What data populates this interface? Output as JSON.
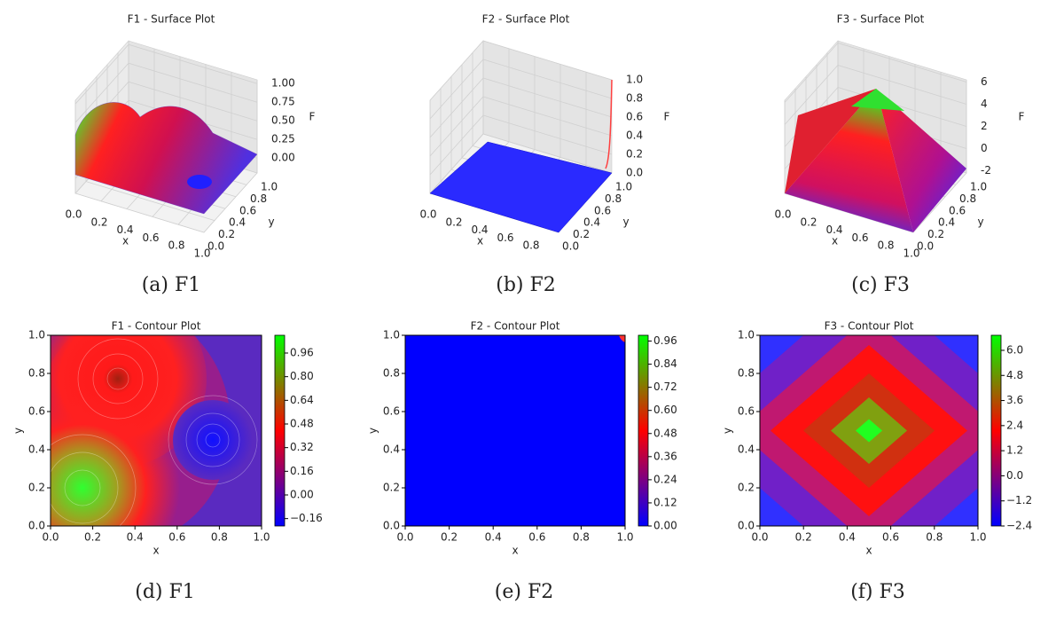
{
  "chart_data": [
    {
      "type": "surface",
      "title": "F1 - Surface Plot",
      "caption": "(a) F1",
      "xlabel": "x",
      "ylabel": "y",
      "zlabel": "F",
      "xlim": [
        0,
        1
      ],
      "ylim": [
        0,
        1
      ],
      "zlim": [
        -0.2,
        1.05
      ],
      "xticks": [
        {
          "value": 0,
          "label": "0.0"
        },
        0.2,
        0.4,
        0.6,
        0.8,
        {
          "value": 1,
          "label": "1.0"
        }
      ],
      "yticks": [
        {
          "value": 0,
          "label": "0.0"
        },
        0.2,
        0.4,
        0.6,
        0.8,
        {
          "value": 1,
          "label": "1.0"
        }
      ],
      "zticks": [
        {
          "value": 0,
          "label": "0.00"
        },
        0.25,
        {
          "value": 0.5,
          "label": "0.50"
        },
        0.75,
        {
          "value": 1,
          "label": "1.00"
        }
      ]
    },
    {
      "type": "surface",
      "title": "F2 - Surface Plot",
      "caption": "(b) F2",
      "xlabel": "x",
      "ylabel": "y",
      "zlabel": "F",
      "xlim": [
        0,
        1
      ],
      "ylim": [
        0,
        1
      ],
      "zlim": [
        0,
        1
      ],
      "xticks": [
        {
          "value": 0,
          "label": "0.0"
        },
        0.2,
        0.4,
        0.6,
        0.8
      ],
      "yticks": [
        {
          "value": 0,
          "label": "0.0"
        },
        0.2,
        0.4,
        0.6,
        0.8,
        {
          "value": 1,
          "label": "1.0"
        }
      ],
      "zticks": [
        {
          "value": 0,
          "label": "0.0"
        },
        0.2,
        0.4,
        0.6,
        0.8,
        {
          "value": 1,
          "label": "1.0"
        }
      ]
    },
    {
      "type": "surface",
      "title": "F3 - Surface Plot",
      "caption": "(c) F3",
      "xlabel": "x",
      "ylabel": "y",
      "zlabel": "F",
      "xlim": [
        0,
        1
      ],
      "ylim": [
        0,
        1
      ],
      "zlim": [
        -2.2,
        6.2
      ],
      "xticks": [
        {
          "value": 0,
          "label": "0.0"
        },
        0.2,
        0.4,
        0.6,
        0.8,
        {
          "value": 1,
          "label": "1.0"
        }
      ],
      "yticks": [
        {
          "value": 0,
          "label": "0.0"
        },
        0.2,
        0.4,
        0.6,
        0.8,
        {
          "value": 1,
          "label": "1.0"
        }
      ],
      "zticks": [
        -2,
        0,
        2,
        4,
        6
      ]
    },
    {
      "type": "contour",
      "title": "F1 - Contour Plot",
      "caption": "(d) F1",
      "xlabel": "x",
      "ylabel": "y",
      "xlim": [
        0,
        1
      ],
      "ylim": [
        0,
        1
      ],
      "clim": [
        -0.21,
        1.08
      ],
      "xticks": [
        {
          "value": 0,
          "label": "0.0"
        },
        0.2,
        0.4,
        0.6,
        0.8,
        {
          "value": 1,
          "label": "1.0"
        }
      ],
      "yticks": [
        {
          "value": 0,
          "label": "0.0"
        },
        0.2,
        0.4,
        0.6,
        0.8,
        {
          "value": 1,
          "label": "1.0"
        }
      ],
      "cticks": [
        {
          "value": -0.16,
          "label": "−0.16"
        },
        {
          "value": 0,
          "label": "0.00"
        },
        0.16,
        0.32,
        0.48,
        0.64,
        {
          "value": 0.8,
          "label": "0.80"
        },
        0.96
      ]
    },
    {
      "type": "contour",
      "title": "F2 - Contour Plot",
      "caption": "(e) F2",
      "xlabel": "x",
      "ylabel": "y",
      "xlim": [
        0,
        1
      ],
      "ylim": [
        0,
        1
      ],
      "clim": [
        0,
        0.99
      ],
      "xticks": [
        {
          "value": 0,
          "label": "0.0"
        },
        0.2,
        0.4,
        0.6,
        0.8,
        {
          "value": 1,
          "label": "1.0"
        }
      ],
      "yticks": [
        {
          "value": 0,
          "label": "0.0"
        },
        0.2,
        0.4,
        0.6,
        0.8,
        {
          "value": 1,
          "label": "1.0"
        }
      ],
      "cticks": [
        {
          "value": 0,
          "label": "0.00"
        },
        0.12,
        0.24,
        0.36,
        0.48,
        {
          "value": 0.6,
          "label": "0.60"
        },
        0.72,
        0.84,
        0.96
      ]
    },
    {
      "type": "contour",
      "title": "F3 - Contour Plot",
      "caption": "(f) F3",
      "xlabel": "x",
      "ylabel": "y",
      "xlim": [
        0,
        1
      ],
      "ylim": [
        0,
        1
      ],
      "clim": [
        -2.4,
        6.72
      ],
      "xticks": [
        {
          "value": 0,
          "label": "0.0"
        },
        0.2,
        0.4,
        0.6,
        0.8,
        {
          "value": 1,
          "label": "1.0"
        }
      ],
      "yticks": [
        {
          "value": 0,
          "label": "0.0"
        },
        0.2,
        0.4,
        0.6,
        0.8,
        {
          "value": 1,
          "label": "1.0"
        }
      ],
      "cticks": [
        {
          "value": -2.4,
          "label": "−2.4"
        },
        {
          "value": -1.2,
          "label": "−1.2"
        },
        {
          "value": 0,
          "label": "0.0"
        },
        1.2,
        2.4,
        3.6,
        4.8,
        {
          "value": 6,
          "label": "6.0"
        }
      ]
    }
  ]
}
